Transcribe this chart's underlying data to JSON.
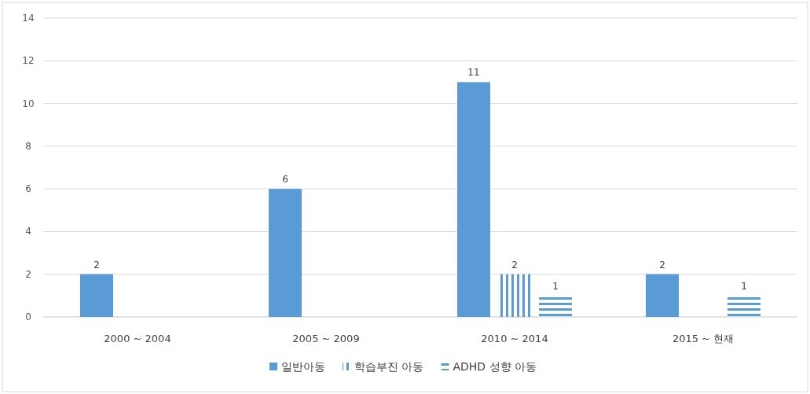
{
  "chart_data": {
    "type": "bar",
    "categories": [
      "2000 ~ 2004",
      "2005 ~ 2009",
      "2010 ~ 2014",
      "2015 ~ 현재"
    ],
    "series": [
      {
        "name": "일반아동",
        "color": "#5b9bd5",
        "values": [
          2,
          6,
          11,
          2
        ]
      },
      {
        "name": "학습부진 아동",
        "color": "#5b9bd5",
        "values": [
          null,
          null,
          2,
          null
        ]
      },
      {
        "name": "ADHD 성향 아동",
        "color": "#5b9bd5",
        "values": [
          null,
          null,
          1,
          1
        ]
      }
    ],
    "ylim": [
      0,
      14
    ],
    "yticks": [
      0,
      2,
      4,
      6,
      8,
      10,
      12,
      14
    ],
    "grid": "y",
    "legend": "bottom",
    "data_labels": true
  }
}
